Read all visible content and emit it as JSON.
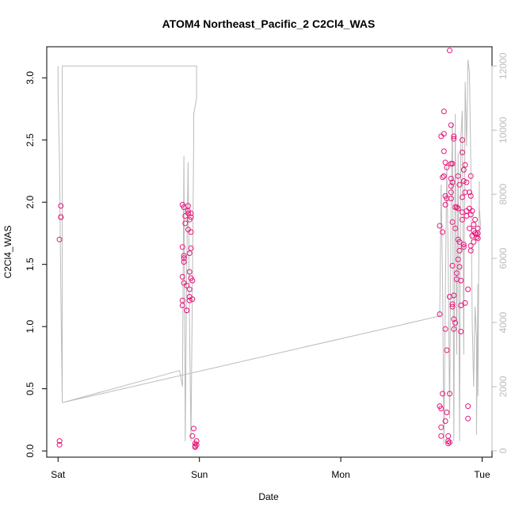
{
  "chart_data": {
    "type": "scatter",
    "title": "ATOM4 Northeast_Pacific_2 C2Cl4_WAS",
    "xlabel": "Date",
    "ylabel": "C2Cl4_WAS",
    "x_ticks": [
      {
        "label": "Sat",
        "value": 0
      },
      {
        "label": "Sun",
        "value": 1
      },
      {
        "label": "Mon",
        "value": 2
      },
      {
        "label": "Tue",
        "value": 3
      }
    ],
    "xlim": [
      -0.08,
      3.07
    ],
    "ylim": [
      -0.05,
      3.25
    ],
    "y_ticks": [
      0.0,
      0.5,
      1.0,
      1.5,
      2.0,
      2.5,
      3.0
    ],
    "y2lim": [
      -200,
      12600
    ],
    "y2_ticks": [
      0,
      2000,
      4000,
      6000,
      8000,
      10000,
      12000
    ],
    "point_color": "#e8157a",
    "line_color": "#bbbbbb",
    "points": [
      [
        0.01,
        0.08
      ],
      [
        0.01,
        0.05
      ],
      [
        0.01,
        1.7
      ],
      [
        0.02,
        1.97
      ],
      [
        0.02,
        1.88
      ],
      [
        0.02,
        1.88
      ],
      [
        0.88,
        1.98
      ],
      [
        0.89,
        1.96
      ],
      [
        0.88,
        1.64
      ],
      [
        0.89,
        1.57
      ],
      [
        0.89,
        1.55
      ],
      [
        0.89,
        1.52
      ],
      [
        0.88,
        1.4
      ],
      [
        0.89,
        1.35
      ],
      [
        0.88,
        1.21
      ],
      [
        0.88,
        1.17
      ],
      [
        0.9,
        1.89
      ],
      [
        0.9,
        1.83
      ],
      [
        0.91,
        1.33
      ],
      [
        0.91,
        1.13
      ],
      [
        0.91,
        1.13
      ],
      [
        0.92,
        1.97
      ],
      [
        0.92,
        1.93
      ],
      [
        0.92,
        1.91
      ],
      [
        0.92,
        1.78
      ],
      [
        0.93,
        1.86
      ],
      [
        0.93,
        1.59
      ],
      [
        0.93,
        1.44
      ],
      [
        0.93,
        1.3
      ],
      [
        0.93,
        1.24
      ],
      [
        0.93,
        1.21
      ],
      [
        0.94,
        1.91
      ],
      [
        0.94,
        1.88
      ],
      [
        0.94,
        1.76
      ],
      [
        0.94,
        1.63
      ],
      [
        0.94,
        1.39
      ],
      [
        0.95,
        1.37
      ],
      [
        0.95,
        1.22
      ],
      [
        0.95,
        0.12
      ],
      [
        0.96,
        0.18
      ],
      [
        0.97,
        0.06
      ],
      [
        0.97,
        0.03
      ],
      [
        0.98,
        0.08
      ],
      [
        0.97,
        0.04
      ],
      [
        0.98,
        0.05
      ],
      [
        2.7,
        1.81
      ],
      [
        2.7,
        1.1
      ],
      [
        2.7,
        0.36
      ],
      [
        2.71,
        0.34
      ],
      [
        2.71,
        0.19
      ],
      [
        2.71,
        0.12
      ],
      [
        2.71,
        2.53
      ],
      [
        2.72,
        2.2
      ],
      [
        2.72,
        1.76
      ],
      [
        2.72,
        0.46
      ],
      [
        2.73,
        2.73
      ],
      [
        2.73,
        2.55
      ],
      [
        2.73,
        2.41
      ],
      [
        2.73,
        2.21
      ],
      [
        2.74,
        2.32
      ],
      [
        2.74,
        2.05
      ],
      [
        2.74,
        1.98
      ],
      [
        2.74,
        0.98
      ],
      [
        2.74,
        0.24
      ],
      [
        2.75,
        2.28
      ],
      [
        2.75,
        2.03
      ],
      [
        2.75,
        0.81
      ],
      [
        2.75,
        0.31
      ],
      [
        2.76,
        0.06
      ],
      [
        2.76,
        0.08
      ],
      [
        2.76,
        0.12
      ],
      [
        2.77,
        0.07
      ],
      [
        2.77,
        0.46
      ],
      [
        2.77,
        1.24
      ],
      [
        2.77,
        3.22
      ],
      [
        2.78,
        2.62
      ],
      [
        2.78,
        2.31
      ],
      [
        2.78,
        2.19
      ],
      [
        2.78,
        2.13
      ],
      [
        2.78,
        2.08
      ],
      [
        2.78,
        2.03
      ],
      [
        2.79,
        2.16
      ],
      [
        2.79,
        2.31
      ],
      [
        2.79,
        1.84
      ],
      [
        2.79,
        1.49
      ],
      [
        2.79,
        1.18
      ],
      [
        2.79,
        1.16
      ],
      [
        2.8,
        2.53
      ],
      [
        2.8,
        2.51
      ],
      [
        2.8,
        1.25
      ],
      [
        2.8,
        1.06
      ],
      [
        2.8,
        0.98
      ],
      [
        2.81,
        1.03
      ],
      [
        2.81,
        1.79
      ],
      [
        2.81,
        1.96
      ],
      [
        2.82,
        1.96
      ],
      [
        2.82,
        1.43
      ],
      [
        2.82,
        1.38
      ],
      [
        2.83,
        2.21
      ],
      [
        2.83,
        1.95
      ],
      [
        2.83,
        1.7
      ],
      [
        2.83,
        1.54
      ],
      [
        2.84,
        2.14
      ],
      [
        2.84,
        1.68
      ],
      [
        2.84,
        1.61
      ],
      [
        2.84,
        1.48
      ],
      [
        2.85,
        1.37
      ],
      [
        2.85,
        1.17
      ],
      [
        2.85,
        0.96
      ],
      [
        2.86,
        2.5
      ],
      [
        2.86,
        2.4
      ],
      [
        2.86,
        2.04
      ],
      [
        2.86,
        1.92
      ],
      [
        2.86,
        1.86
      ],
      [
        2.87,
        2.26
      ],
      [
        2.87,
        2.17
      ],
      [
        2.87,
        1.66
      ],
      [
        2.87,
        1.64
      ],
      [
        2.88,
        2.3
      ],
      [
        2.88,
        2.08
      ],
      [
        2.88,
        1.19
      ],
      [
        2.89,
        2.16
      ],
      [
        2.89,
        1.93
      ],
      [
        2.89,
        1.89
      ],
      [
        2.9,
        1.3
      ],
      [
        2.9,
        0.36
      ],
      [
        2.9,
        0.26
      ],
      [
        2.91,
        2.08
      ],
      [
        2.91,
        1.95
      ],
      [
        2.91,
        1.79
      ],
      [
        2.92,
        2.21
      ],
      [
        2.92,
        2.05
      ],
      [
        2.92,
        1.9
      ],
      [
        2.92,
        1.65
      ],
      [
        2.92,
        1.61
      ],
      [
        2.93,
        1.93
      ],
      [
        2.93,
        1.73
      ],
      [
        2.94,
        1.77
      ],
      [
        2.94,
        1.82
      ],
      [
        2.94,
        1.68
      ],
      [
        2.95,
        1.86
      ],
      [
        2.95,
        1.75
      ],
      [
        2.96,
        1.74
      ],
      [
        2.96,
        1.72
      ],
      [
        2.97,
        1.79
      ],
      [
        2.97,
        1.75
      ],
      [
        2.97,
        1.71
      ]
    ],
    "line": [
      [
        0.0,
        12000
      ],
      [
        0.0,
        11200
      ],
      [
        0.01,
        9000
      ],
      [
        0.02,
        5000
      ],
      [
        0.03,
        1500
      ],
      [
        0.03,
        12000
      ],
      [
        0.98,
        12000
      ],
      [
        0.98,
        11000
      ],
      [
        0.96,
        10500
      ],
      [
        0.96,
        9800
      ],
      [
        0.95,
        5000
      ],
      [
        0.94,
        300
      ],
      [
        0.93,
        4000
      ],
      [
        0.92,
        9000
      ],
      [
        0.91,
        5500
      ],
      [
        0.9,
        300
      ],
      [
        0.89,
        9200
      ],
      [
        0.88,
        2000
      ],
      [
        0.86,
        2500
      ],
      [
        0.03,
        1500
      ],
      [
        2.7,
        4200
      ],
      [
        2.71,
        8300
      ],
      [
        2.72,
        5200
      ],
      [
        2.73,
        200
      ],
      [
        2.74,
        4800
      ],
      [
        2.75,
        9000
      ],
      [
        2.76,
        6000
      ],
      [
        2.77,
        1000
      ],
      [
        2.78,
        7500
      ],
      [
        2.79,
        10200
      ],
      [
        2.8,
        300
      ],
      [
        2.81,
        10500
      ],
      [
        2.82,
        3000
      ],
      [
        2.83,
        9300
      ],
      [
        2.84,
        300
      ],
      [
        2.85,
        9800
      ],
      [
        2.86,
        10600
      ],
      [
        2.87,
        3000
      ],
      [
        2.88,
        11500
      ],
      [
        2.89,
        9500
      ],
      [
        2.9,
        12200
      ],
      [
        2.91,
        11800
      ],
      [
        2.92,
        9000
      ],
      [
        2.93,
        4000
      ],
      [
        2.94,
        2000
      ],
      [
        2.95,
        4500
      ],
      [
        2.96,
        3500
      ],
      [
        2.96,
        500
      ],
      [
        2.97,
        5200
      ],
      [
        2.97,
        1700
      ],
      [
        2.98,
        8400
      ],
      [
        2.98,
        7600
      ],
      [
        2.99,
        7000
      ]
    ]
  }
}
